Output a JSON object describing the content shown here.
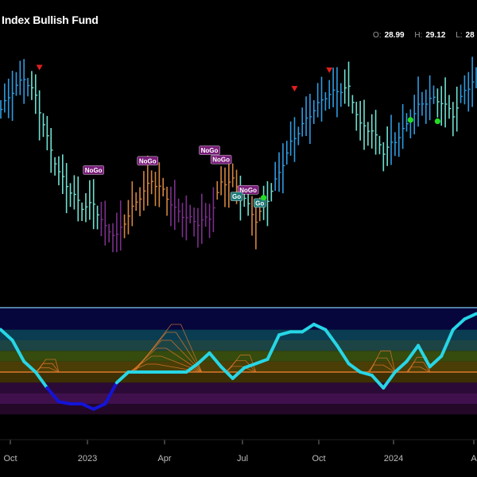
{
  "header": {
    "title": "Index Bullish Fund",
    "ohlc": [
      {
        "key": "O:",
        "value": "28.99"
      },
      {
        "key": "H:",
        "value": "29.12"
      },
      {
        "key": "L:",
        "value": "28"
      }
    ]
  },
  "colors": {
    "background": "#000000",
    "strong_go": "#2f9be0",
    "weak_go": "#6fe0d0",
    "weak_nogo": "#d3853f",
    "strong_nogo": "#7c2f8c",
    "nogo_label": "#7a1e7a",
    "go_label": "#1f7a7a",
    "oscillator_up": "#27d6e6",
    "oscillator_down": "#1414d6",
    "zero_line": "#d9782b",
    "panel_border": "#6fa8dc"
  },
  "chart_data": {
    "type": "bar",
    "x_ticks": [
      "Oct",
      "2023",
      "Apr",
      "Jul",
      "Oct",
      "2024",
      "A"
    ],
    "price": {
      "points": [
        {
          "i": 0,
          "v": 27.6,
          "trend": "strong_go"
        },
        {
          "i": 3,
          "v": 28.3,
          "trend": "strong_go"
        },
        {
          "i": 6,
          "v": 28.8,
          "trend": "strong_go"
        },
        {
          "i": 9,
          "v": 28.1,
          "trend": "weak_go"
        },
        {
          "i": 12,
          "v": 26.5,
          "trend": "weak_go"
        },
        {
          "i": 15,
          "v": 25.2,
          "trend": "weak_go"
        },
        {
          "i": 18,
          "v": 24.5,
          "trend": "weak_go"
        },
        {
          "i": 21,
          "v": 23.9,
          "trend": "weak_go"
        },
        {
          "i": 24,
          "v": 24.0,
          "trend": "weak_go"
        },
        {
          "i": 27,
          "v": 23.1,
          "trend": "strong_nogo"
        },
        {
          "i": 30,
          "v": 22.8,
          "trend": "strong_nogo"
        },
        {
          "i": 33,
          "v": 23.6,
          "trend": "weak_nogo"
        },
        {
          "i": 36,
          "v": 24.3,
          "trend": "weak_nogo"
        },
        {
          "i": 39,
          "v": 24.9,
          "trend": "weak_nogo"
        },
        {
          "i": 42,
          "v": 24.5,
          "trend": "weak_nogo"
        },
        {
          "i": 45,
          "v": 23.8,
          "trend": "strong_nogo"
        },
        {
          "i": 48,
          "v": 23.5,
          "trend": "strong_nogo"
        },
        {
          "i": 51,
          "v": 23.3,
          "trend": "strong_nogo"
        },
        {
          "i": 54,
          "v": 23.5,
          "trend": "strong_nogo"
        },
        {
          "i": 57,
          "v": 24.8,
          "trend": "weak_nogo"
        },
        {
          "i": 60,
          "v": 24.9,
          "trend": "weak_nogo"
        },
        {
          "i": 63,
          "v": 24.2,
          "trend": "weak_go"
        },
        {
          "i": 66,
          "v": 23.4,
          "trend": "weak_nogo"
        },
        {
          "i": 69,
          "v": 24.2,
          "trend": "weak_go"
        },
        {
          "i": 72,
          "v": 25.2,
          "trend": "strong_go"
        },
        {
          "i": 75,
          "v": 26.3,
          "trend": "strong_go"
        },
        {
          "i": 78,
          "v": 27.0,
          "trend": "strong_go"
        },
        {
          "i": 81,
          "v": 27.6,
          "trend": "strong_go"
        },
        {
          "i": 84,
          "v": 28.1,
          "trend": "strong_go"
        },
        {
          "i": 87,
          "v": 28.3,
          "trend": "strong_go"
        },
        {
          "i": 90,
          "v": 28.4,
          "trend": "weak_go"
        },
        {
          "i": 93,
          "v": 27.0,
          "trend": "weak_go"
        },
        {
          "i": 96,
          "v": 26.8,
          "trend": "weak_go"
        },
        {
          "i": 99,
          "v": 26.0,
          "trend": "weak_go"
        },
        {
          "i": 102,
          "v": 26.4,
          "trend": "strong_go"
        },
        {
          "i": 105,
          "v": 27.0,
          "trend": "strong_go"
        },
        {
          "i": 108,
          "v": 27.7,
          "trend": "strong_go"
        },
        {
          "i": 111,
          "v": 28.0,
          "trend": "strong_go"
        },
        {
          "i": 114,
          "v": 27.9,
          "trend": "weak_go"
        },
        {
          "i": 117,
          "v": 27.4,
          "trend": "weak_go"
        },
        {
          "i": 120,
          "v": 28.3,
          "trend": "strong_go"
        },
        {
          "i": 123,
          "v": 28.8,
          "trend": "strong_go"
        }
      ],
      "markers": [
        {
          "type": "down-arrow",
          "i": 10,
          "v": 29.2
        },
        {
          "type": "down-arrow",
          "i": 85,
          "v": 29.1
        },
        {
          "type": "down-arrow",
          "i": 76,
          "v": 28.4
        },
        {
          "type": "nogo",
          "i": 24,
          "text": "NoGo",
          "v": 25.3
        },
        {
          "type": "nogo",
          "i": 38,
          "text": "NoGo",
          "v": 25.65
        },
        {
          "type": "nogo",
          "i": 54,
          "text": "NoGo",
          "v": 26.05
        },
        {
          "type": "nogo",
          "i": 57,
          "text": "NoGo",
          "v": 25.7
        },
        {
          "type": "nogo",
          "i": 64,
          "text": "NoGo",
          "v": 24.55
        },
        {
          "type": "go",
          "i": 61,
          "text": "Go",
          "v": 24.3
        },
        {
          "type": "go",
          "i": 67,
          "text": "Go",
          "v": 24.05
        },
        {
          "type": "go-dot",
          "i": 68,
          "v": 24.25
        },
        {
          "type": "go-dot",
          "i": 106,
          "v": 27.2
        },
        {
          "type": "go-dot",
          "i": 113,
          "v": 27.15
        }
      ]
    },
    "oscillator": {
      "points": [
        {
          "i": 0,
          "v": 4.0
        },
        {
          "i": 3,
          "v": 3.0
        },
        {
          "i": 6,
          "v": 1.0
        },
        {
          "i": 9,
          "v": 0.0
        },
        {
          "i": 12,
          "v": -1.5
        },
        {
          "i": 15,
          "v": -2.8
        },
        {
          "i": 18,
          "v": -3.0
        },
        {
          "i": 21,
          "v": -3.0
        },
        {
          "i": 24,
          "v": -3.5
        },
        {
          "i": 27,
          "v": -3.0
        },
        {
          "i": 30,
          "v": -1.0
        },
        {
          "i": 33,
          "v": 0.0
        },
        {
          "i": 36,
          "v": 0.0
        },
        {
          "i": 39,
          "v": 0.0
        },
        {
          "i": 42,
          "v": 0.0
        },
        {
          "i": 45,
          "v": 0.0
        },
        {
          "i": 48,
          "v": 0.0
        },
        {
          "i": 51,
          "v": 0.8
        },
        {
          "i": 54,
          "v": 1.8
        },
        {
          "i": 57,
          "v": 0.5
        },
        {
          "i": 60,
          "v": -0.6
        },
        {
          "i": 63,
          "v": 0.4
        },
        {
          "i": 66,
          "v": 0.8
        },
        {
          "i": 69,
          "v": 1.2
        },
        {
          "i": 72,
          "v": 3.5
        },
        {
          "i": 75,
          "v": 3.8
        },
        {
          "i": 78,
          "v": 3.8
        },
        {
          "i": 81,
          "v": 4.5
        },
        {
          "i": 84,
          "v": 4.0
        },
        {
          "i": 87,
          "v": 2.5
        },
        {
          "i": 90,
          "v": 0.8
        },
        {
          "i": 93,
          "v": 0.0
        },
        {
          "i": 96,
          "v": -0.3
        },
        {
          "i": 99,
          "v": -1.5
        },
        {
          "i": 102,
          "v": 0.0
        },
        {
          "i": 105,
          "v": 1.0
        },
        {
          "i": 108,
          "v": 2.5
        },
        {
          "i": 111,
          "v": 0.5
        },
        {
          "i": 114,
          "v": 1.5
        },
        {
          "i": 117,
          "v": 4.0
        },
        {
          "i": 120,
          "v": 5.0
        },
        {
          "i": 123,
          "v": 5.5
        }
      ],
      "bands": [
        {
          "from": 4,
          "to": 6,
          "color": "#06063d"
        },
        {
          "from": 3,
          "to": 4,
          "color": "#0b3d52"
        },
        {
          "from": 2,
          "to": 3,
          "color": "#1d4444"
        },
        {
          "from": 1,
          "to": 2,
          "color": "#364b0e"
        },
        {
          "from": 0,
          "to": 1,
          "color": "#4a3e06"
        },
        {
          "from": -1,
          "to": 0,
          "color": "#3d3005"
        },
        {
          "from": -2,
          "to": -1,
          "color": "#2c0a37"
        },
        {
          "from": -3,
          "to": -2,
          "color": "#40104d"
        },
        {
          "from": -4,
          "to": -3,
          "color": "#230828"
        }
      ],
      "ylim": [
        -6,
        6
      ]
    }
  }
}
